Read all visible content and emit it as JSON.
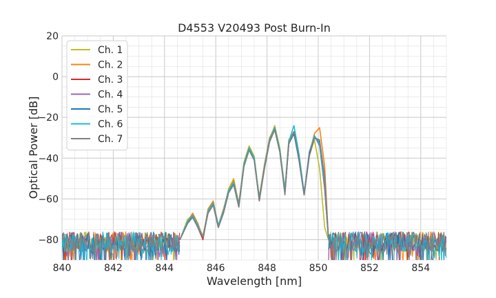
{
  "chart_data": {
    "type": "line",
    "title": "D4553 V20493 Post Burn-In",
    "xlabel": "Wavelength [nm]",
    "ylabel": "Optical Power [dB]",
    "xlim": [
      840,
      855
    ],
    "ylim": [
      -90,
      20
    ],
    "xticks": [
      840,
      842,
      844,
      846,
      848,
      850,
      852,
      854
    ],
    "yticks": [
      20,
      0,
      -20,
      -40,
      -60,
      -80
    ],
    "grid": true,
    "legend_position": "top-left",
    "noise_floor_db": -80,
    "series": [
      {
        "name": "Ch. 1",
        "color": "#bcbd22",
        "points": [
          [
            844.6,
            -80
          ],
          [
            844.9,
            -70
          ],
          [
            845.1,
            -68
          ],
          [
            845.3,
            -73
          ],
          [
            845.5,
            -78
          ],
          [
            845.7,
            -66
          ],
          [
            845.9,
            -62
          ],
          [
            846.1,
            -74
          ],
          [
            846.3,
            -66
          ],
          [
            846.5,
            -55
          ],
          [
            846.7,
            -50
          ],
          [
            846.9,
            -63
          ],
          [
            847.1,
            -42
          ],
          [
            847.3,
            -34
          ],
          [
            847.5,
            -39
          ],
          [
            847.7,
            -60
          ],
          [
            847.9,
            -44
          ],
          [
            848.1,
            -31
          ],
          [
            848.3,
            -24
          ],
          [
            848.5,
            -35
          ],
          [
            848.7,
            -56
          ],
          [
            848.85,
            -32
          ],
          [
            849.05,
            -28
          ],
          [
            849.25,
            -40
          ],
          [
            849.45,
            -58
          ],
          [
            849.65,
            -39
          ],
          [
            849.85,
            -31
          ],
          [
            850.05,
            -45
          ],
          [
            850.25,
            -74
          ],
          [
            850.4,
            -80
          ]
        ]
      },
      {
        "name": "Ch. 2",
        "color": "#ff7f0e",
        "points": [
          [
            844.6,
            -80
          ],
          [
            844.9,
            -71
          ],
          [
            845.1,
            -67
          ],
          [
            845.3,
            -72
          ],
          [
            845.5,
            -79
          ],
          [
            845.7,
            -65
          ],
          [
            845.9,
            -61
          ],
          [
            846.1,
            -73
          ],
          [
            846.3,
            -65
          ],
          [
            846.5,
            -56
          ],
          [
            846.7,
            -51
          ],
          [
            846.9,
            -62
          ],
          [
            847.1,
            -43
          ],
          [
            847.3,
            -35
          ],
          [
            847.5,
            -40
          ],
          [
            847.7,
            -59
          ],
          [
            847.9,
            -43
          ],
          [
            848.1,
            -30
          ],
          [
            848.3,
            -25
          ],
          [
            848.5,
            -36
          ],
          [
            848.7,
            -55
          ],
          [
            848.85,
            -31
          ],
          [
            849.05,
            -27
          ],
          [
            849.25,
            -41
          ],
          [
            849.45,
            -57
          ],
          [
            849.65,
            -38
          ],
          [
            849.85,
            -28
          ],
          [
            850.05,
            -25
          ],
          [
            850.25,
            -44
          ],
          [
            850.4,
            -80
          ]
        ]
      },
      {
        "name": "Ch. 3",
        "color": "#d62728",
        "points": [
          [
            844.6,
            -80
          ],
          [
            844.9,
            -72
          ],
          [
            845.1,
            -68
          ],
          [
            845.3,
            -74
          ],
          [
            845.5,
            -80
          ],
          [
            845.7,
            -66
          ],
          [
            845.9,
            -62
          ],
          [
            846.1,
            -74
          ],
          [
            846.3,
            -66
          ],
          [
            846.5,
            -56
          ],
          [
            846.7,
            -52
          ],
          [
            846.9,
            -63
          ],
          [
            847.1,
            -43
          ],
          [
            847.3,
            -35
          ],
          [
            847.5,
            -40
          ],
          [
            847.7,
            -61
          ],
          [
            847.9,
            -45
          ],
          [
            848.1,
            -31
          ],
          [
            848.3,
            -25
          ],
          [
            848.5,
            -36
          ],
          [
            848.7,
            -57
          ],
          [
            848.85,
            -33
          ],
          [
            849.05,
            -27
          ],
          [
            849.25,
            -41
          ],
          [
            849.45,
            -58
          ],
          [
            849.65,
            -38
          ],
          [
            849.85,
            -29
          ],
          [
            850.05,
            -33
          ],
          [
            850.25,
            -55
          ],
          [
            850.4,
            -80
          ]
        ]
      },
      {
        "name": "Ch. 4",
        "color": "#9467bd",
        "points": [
          [
            844.6,
            -80
          ],
          [
            844.9,
            -71
          ],
          [
            845.1,
            -68
          ],
          [
            845.3,
            -73
          ],
          [
            845.5,
            -79
          ],
          [
            845.7,
            -66
          ],
          [
            845.9,
            -63
          ],
          [
            846.1,
            -73
          ],
          [
            846.3,
            -66
          ],
          [
            846.5,
            -56
          ],
          [
            846.7,
            -52
          ],
          [
            846.9,
            -63
          ],
          [
            847.1,
            -44
          ],
          [
            847.3,
            -36
          ],
          [
            847.5,
            -40
          ],
          [
            847.7,
            -60
          ],
          [
            847.9,
            -45
          ],
          [
            848.1,
            -32
          ],
          [
            848.3,
            -26
          ],
          [
            848.5,
            -36
          ],
          [
            848.7,
            -57
          ],
          [
            848.85,
            -33
          ],
          [
            849.05,
            -27
          ],
          [
            849.25,
            -41
          ],
          [
            849.45,
            -58
          ],
          [
            849.65,
            -39
          ],
          [
            849.85,
            -29
          ],
          [
            850.05,
            -34
          ],
          [
            850.25,
            -54
          ],
          [
            850.4,
            -80
          ]
        ]
      },
      {
        "name": "Ch. 5",
        "color": "#1f77b4",
        "points": [
          [
            844.6,
            -80
          ],
          [
            844.9,
            -72
          ],
          [
            845.1,
            -69
          ],
          [
            845.3,
            -74
          ],
          [
            845.5,
            -79
          ],
          [
            845.7,
            -67
          ],
          [
            845.9,
            -63
          ],
          [
            846.1,
            -74
          ],
          [
            846.3,
            -67
          ],
          [
            846.5,
            -57
          ],
          [
            846.7,
            -53
          ],
          [
            846.9,
            -64
          ],
          [
            847.1,
            -44
          ],
          [
            847.3,
            -36
          ],
          [
            847.5,
            -41
          ],
          [
            847.7,
            -60
          ],
          [
            847.9,
            -45
          ],
          [
            848.1,
            -32
          ],
          [
            848.3,
            -26
          ],
          [
            848.5,
            -37
          ],
          [
            848.7,
            -57
          ],
          [
            848.85,
            -33
          ],
          [
            849.05,
            -28
          ],
          [
            849.25,
            -41
          ],
          [
            849.45,
            -58
          ],
          [
            849.65,
            -38
          ],
          [
            849.85,
            -30
          ],
          [
            850.05,
            -32
          ],
          [
            850.25,
            -50
          ],
          [
            850.4,
            -80
          ]
        ]
      },
      {
        "name": "Ch. 6",
        "color": "#17becf",
        "points": [
          [
            844.6,
            -80
          ],
          [
            844.9,
            -71
          ],
          [
            845.1,
            -68
          ],
          [
            845.3,
            -73
          ],
          [
            845.5,
            -79
          ],
          [
            845.7,
            -66
          ],
          [
            845.9,
            -62
          ],
          [
            846.1,
            -73
          ],
          [
            846.3,
            -66
          ],
          [
            846.5,
            -56
          ],
          [
            846.7,
            -52
          ],
          [
            846.9,
            -63
          ],
          [
            847.1,
            -43
          ],
          [
            847.3,
            -35
          ],
          [
            847.5,
            -40
          ],
          [
            847.7,
            -60
          ],
          [
            847.9,
            -44
          ],
          [
            848.1,
            -31
          ],
          [
            848.3,
            -25
          ],
          [
            848.5,
            -36
          ],
          [
            848.7,
            -56
          ],
          [
            848.85,
            -32
          ],
          [
            849.05,
            -24
          ],
          [
            849.25,
            -38
          ],
          [
            849.45,
            -57
          ],
          [
            849.65,
            -37
          ],
          [
            849.85,
            -29
          ],
          [
            850.05,
            -33
          ],
          [
            850.25,
            -52
          ],
          [
            850.4,
            -80
          ]
        ]
      },
      {
        "name": "Ch. 7",
        "color": "#7f7f7f",
        "points": [
          [
            844.6,
            -80
          ],
          [
            844.9,
            -72
          ],
          [
            845.1,
            -69
          ],
          [
            845.3,
            -74
          ],
          [
            845.5,
            -79
          ],
          [
            845.7,
            -67
          ],
          [
            845.9,
            -63
          ],
          [
            846.1,
            -74
          ],
          [
            846.3,
            -67
          ],
          [
            846.5,
            -57
          ],
          [
            846.7,
            -53
          ],
          [
            846.9,
            -64
          ],
          [
            847.1,
            -44
          ],
          [
            847.3,
            -36
          ],
          [
            847.5,
            -41
          ],
          [
            847.7,
            -61
          ],
          [
            847.9,
            -45
          ],
          [
            848.1,
            -32
          ],
          [
            848.3,
            -26
          ],
          [
            848.5,
            -37
          ],
          [
            848.7,
            -58
          ],
          [
            848.85,
            -33
          ],
          [
            849.05,
            -27
          ],
          [
            849.25,
            -40
          ],
          [
            849.45,
            -58
          ],
          [
            849.65,
            -37
          ],
          [
            849.85,
            -30
          ],
          [
            850.05,
            -31
          ],
          [
            850.25,
            -49
          ],
          [
            850.4,
            -80
          ]
        ]
      }
    ]
  }
}
